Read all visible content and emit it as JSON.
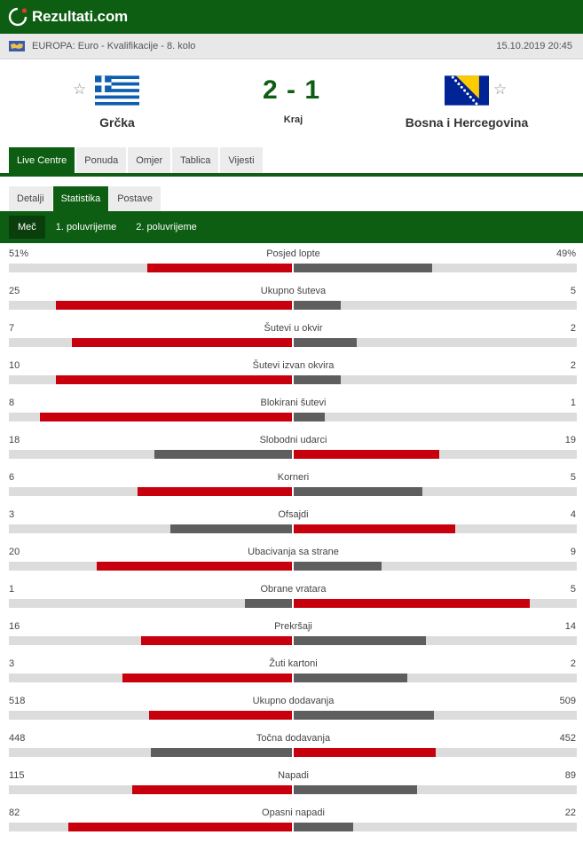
{
  "site": {
    "name": "Rezultati.com",
    "logo_icon": "rezultati-logo-icon"
  },
  "tournament": {
    "name": "EUROPA: Euro - Kvalifikacije - 8. kolo",
    "datetime": "15.10.2019 20:45",
    "icon": "europe-flag-icon"
  },
  "match": {
    "home": {
      "name": "Grčka",
      "flag": "greece-flag"
    },
    "away": {
      "name": "Bosna i Hercegovina",
      "flag": "bosnia-flag"
    },
    "score": "2 - 1",
    "status": "Kraj",
    "favorite_icon": "star-icon"
  },
  "tabs": [
    "Live Centre",
    "Ponuda",
    "Omjer",
    "Tablica",
    "Vijesti"
  ],
  "subtabs": [
    "Detalji",
    "Statistika",
    "Postave"
  ],
  "periods": [
    "Meč",
    "1. poluvrijeme",
    "2. poluvrijeme"
  ],
  "colors": {
    "green": "#0d5e12",
    "winner": "#c8000d",
    "loser": "#5e5e5e",
    "track": "#dcdcdc"
  },
  "stats": [
    {
      "name": "Posjed lopte",
      "home": "51%",
      "away": "49%",
      "h": 51,
      "a": 49
    },
    {
      "name": "Ukupno šuteva",
      "home": "25",
      "away": "5",
      "h": 25,
      "a": 5
    },
    {
      "name": "Šutevi u okvir",
      "home": "7",
      "away": "2",
      "h": 7,
      "a": 2
    },
    {
      "name": "Šutevi izvan okvira",
      "home": "10",
      "away": "2",
      "h": 10,
      "a": 2
    },
    {
      "name": "Blokirani šutevi",
      "home": "8",
      "away": "1",
      "h": 8,
      "a": 1
    },
    {
      "name": "Slobodni udarci",
      "home": "18",
      "away": "19",
      "h": 18,
      "a": 19
    },
    {
      "name": "Korneri",
      "home": "6",
      "away": "5",
      "h": 6,
      "a": 5
    },
    {
      "name": "Ofsajdi",
      "home": "3",
      "away": "4",
      "h": 3,
      "a": 4
    },
    {
      "name": "Ubacivanja sa strane",
      "home": "20",
      "away": "9",
      "h": 20,
      "a": 9
    },
    {
      "name": "Obrane vratara",
      "home": "1",
      "away": "5",
      "h": 1,
      "a": 5
    },
    {
      "name": "Prekršaji",
      "home": "16",
      "away": "14",
      "h": 16,
      "a": 14
    },
    {
      "name": "Žuti kartoni",
      "home": "3",
      "away": "2",
      "h": 3,
      "a": 2
    },
    {
      "name": "Ukupno dodavanja",
      "home": "518",
      "away": "509",
      "h": 518,
      "a": 509
    },
    {
      "name": "Točna dodavanja",
      "home": "448",
      "away": "452",
      "h": 448,
      "a": 452
    },
    {
      "name": "Napadi",
      "home": "115",
      "away": "89",
      "h": 115,
      "a": 89
    },
    {
      "name": "Opasni napadi",
      "home": "82",
      "away": "22",
      "h": 82,
      "a": 22
    }
  ]
}
